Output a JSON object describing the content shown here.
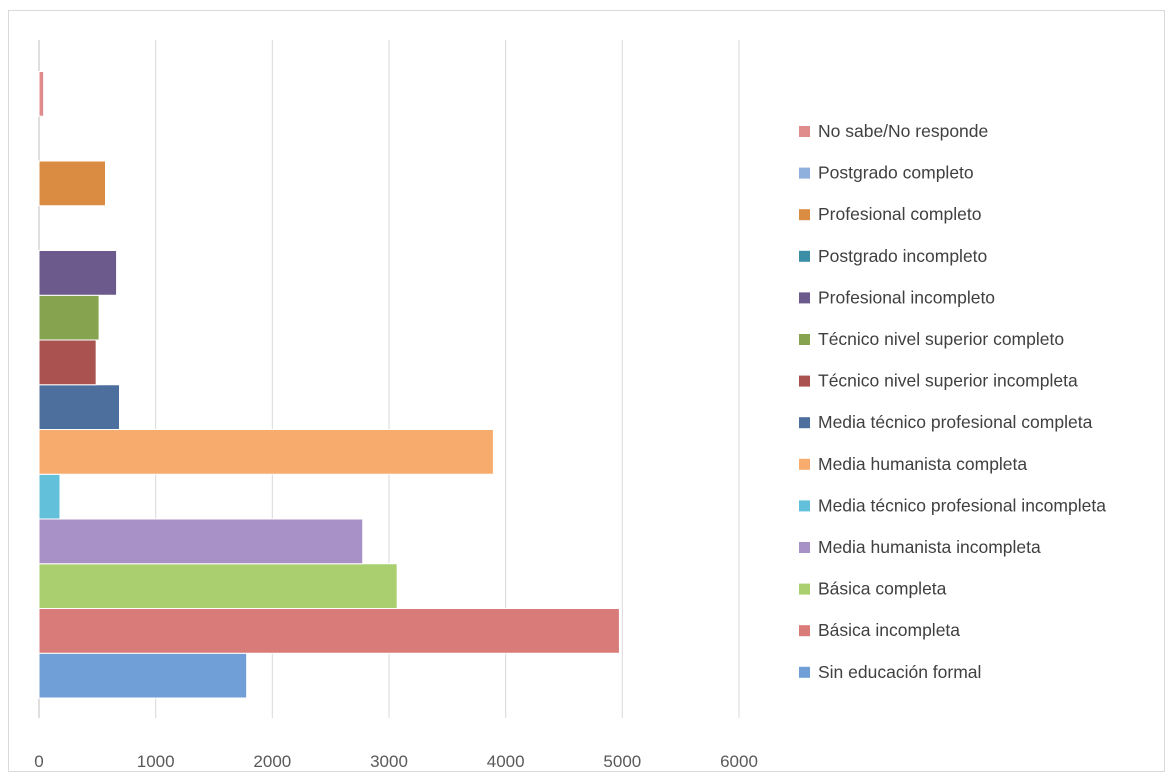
{
  "chart_data": {
    "type": "bar",
    "orientation": "horizontal",
    "title": "",
    "xlabel": "",
    "ylabel": "",
    "xlim": [
      0,
      6000
    ],
    "x_ticks": [
      "0",
      "1000",
      "2000",
      "3000",
      "4000",
      "5000",
      "6000"
    ],
    "grid": true,
    "legend_position": "right",
    "series": [
      {
        "name": "Sin educación formal",
        "value": 1780,
        "color": "#6f9fd6"
      },
      {
        "name": "Básica incompleta",
        "value": 4975,
        "color": "#d97b78"
      },
      {
        "name": "Básica completa",
        "value": 3070,
        "color": "#a9cf6f"
      },
      {
        "name": "Media humanista incompleta",
        "value": 2775,
        "color": "#a891c6"
      },
      {
        "name": "Media técnico profesional incompleta",
        "value": 180,
        "color": "#62c0da"
      },
      {
        "name": "Media humanista completa",
        "value": 3895,
        "color": "#f7ac6e"
      },
      {
        "name": "Media técnico profesional completa",
        "value": 690,
        "color": "#4c6f9d"
      },
      {
        "name": "Técnico nivel superior incompleta",
        "value": 490,
        "color": "#a9524f"
      },
      {
        "name": "Técnico nivel superior completo",
        "value": 515,
        "color": "#86a350"
      },
      {
        "name": "Profesional incompleto",
        "value": 665,
        "color": "#6c5a8c"
      },
      {
        "name": "Postgrado incompleto",
        "value": 0,
        "color": "#3b8ea6"
      },
      {
        "name": "Profesional completo",
        "value": 570,
        "color": "#d98c42"
      },
      {
        "name": "Postgrado completo",
        "value": 0,
        "color": "#8fb0dc"
      },
      {
        "name": "No sabe/No responde",
        "value": 40,
        "color": "#e08c8c"
      }
    ]
  }
}
